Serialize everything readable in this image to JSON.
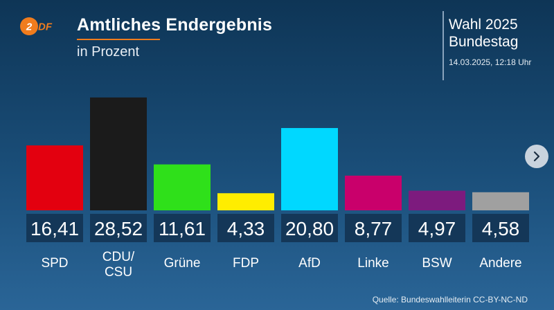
{
  "header": {
    "logo_text": "ZDF",
    "title": "Amtliches Endergebnis",
    "subtitle": "in Prozent",
    "event_line1": "Wahl 2025",
    "event_line2": "Bundestag",
    "timestamp": "14.03.2025, 12:18 Uhr"
  },
  "colors": {
    "logo_orange": "#f07c1d",
    "value_box": "#143758"
  },
  "icons": {
    "next": "chevron-right-icon"
  },
  "chart_data": {
    "type": "bar",
    "categories": [
      "SPD",
      "CDU/\nCSU",
      "Grüne",
      "FDP",
      "AfD",
      "Linke",
      "BSW",
      "Andere"
    ],
    "values": [
      16.41,
      28.52,
      11.61,
      4.33,
      20.8,
      8.77,
      4.97,
      4.58
    ],
    "value_labels": [
      "16,41",
      "28,52",
      "11,61",
      "4,33",
      "20,80",
      "8,77",
      "4,97",
      "4,58"
    ],
    "colors": [
      "#e3000f",
      "#1b1b1b",
      "#2fe01a",
      "#ffed00",
      "#00d8ff",
      "#c9006b",
      "#7d1b7e",
      "#a0a0a0"
    ],
    "title": "Amtliches Endergebnis",
    "subtitle": "in Prozent",
    "xlabel": "",
    "ylabel": "",
    "ylim": [
      0,
      30
    ],
    "grid": false
  },
  "footer": {
    "source": "Quelle: Bundeswahlleiterin CC-BY-NC-ND"
  }
}
